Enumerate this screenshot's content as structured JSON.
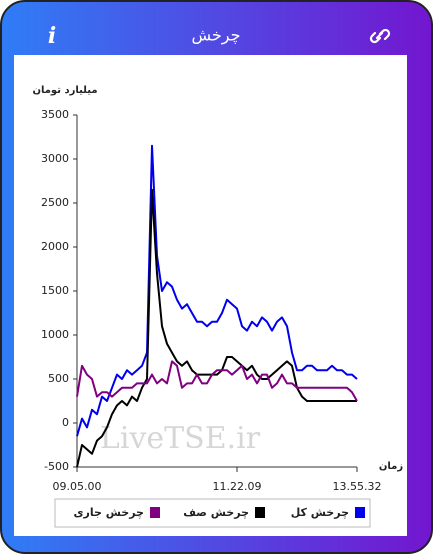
{
  "header": {
    "info_icon": "i"
  },
  "chart_data": {
    "type": "line",
    "title": "چرخش",
    "y_label": "میلیارد تومان",
    "x_label": "زمان",
    "watermark": "LiveTSE.ir",
    "categories": [
      "09.05.00",
      null,
      null,
      null,
      null,
      null,
      null,
      null,
      null,
      null,
      null,
      null,
      null,
      null,
      null,
      null,
      null,
      null,
      null,
      null,
      null,
      null,
      null,
      null,
      null,
      null,
      null,
      null,
      null,
      null,
      null,
      null,
      "11.22.09",
      null,
      null,
      null,
      null,
      null,
      null,
      null,
      null,
      null,
      null,
      null,
      null,
      null,
      null,
      null,
      null,
      null,
      null,
      null,
      null,
      null,
      null,
      null,
      "13.55.32"
    ],
    "ylim": [
      -500,
      3500
    ],
    "yticks": [
      -500,
      0,
      500,
      1000,
      1500,
      2000,
      2500,
      3000,
      3500
    ],
    "grid": false,
    "legend": "bottom",
    "series": [
      {
        "name": "چرخش کل",
        "color": "#0000ee",
        "values": [
          -150,
          50,
          -50,
          150,
          100,
          300,
          250,
          400,
          550,
          500,
          600,
          550,
          600,
          650,
          800,
          3150,
          1900,
          1500,
          1600,
          1550,
          1400,
          1300,
          1350,
          1250,
          1150,
          1150,
          1100,
          1150,
          1150,
          1250,
          1400,
          1350,
          1300,
          1100,
          1050,
          1150,
          1100,
          1200,
          1150,
          1050,
          1150,
          1200,
          1100,
          800,
          600,
          600,
          650,
          650,
          600,
          600,
          600,
          650,
          600,
          600,
          550,
          550,
          500
        ]
      },
      {
        "name": "چرخش صف",
        "color": "#000000",
        "values": [
          -500,
          -250,
          -300,
          -350,
          -200,
          -150,
          -50,
          100,
          200,
          250,
          200,
          300,
          250,
          400,
          500,
          2650,
          1700,
          1100,
          900,
          800,
          700,
          650,
          700,
          600,
          550,
          550,
          550,
          550,
          550,
          600,
          750,
          750,
          700,
          650,
          600,
          650,
          550,
          500,
          500,
          550,
          600,
          650,
          700,
          650,
          400,
          300,
          250,
          250,
          250,
          250,
          250,
          250,
          250,
          250,
          250,
          250,
          250
        ]
      },
      {
        "name": "چرخش جاری",
        "color": "#800080",
        "values": [
          300,
          650,
          550,
          500,
          300,
          350,
          350,
          300,
          350,
          400,
          400,
          400,
          450,
          450,
          450,
          550,
          450,
          500,
          450,
          700,
          650,
          400,
          450,
          450,
          550,
          450,
          450,
          550,
          600,
          600,
          600,
          550,
          600,
          650,
          500,
          550,
          450,
          550,
          550,
          400,
          450,
          550,
          450,
          450,
          400,
          400,
          400,
          400,
          400,
          400,
          400,
          400,
          400,
          400,
          400,
          350,
          250
        ]
      }
    ]
  }
}
